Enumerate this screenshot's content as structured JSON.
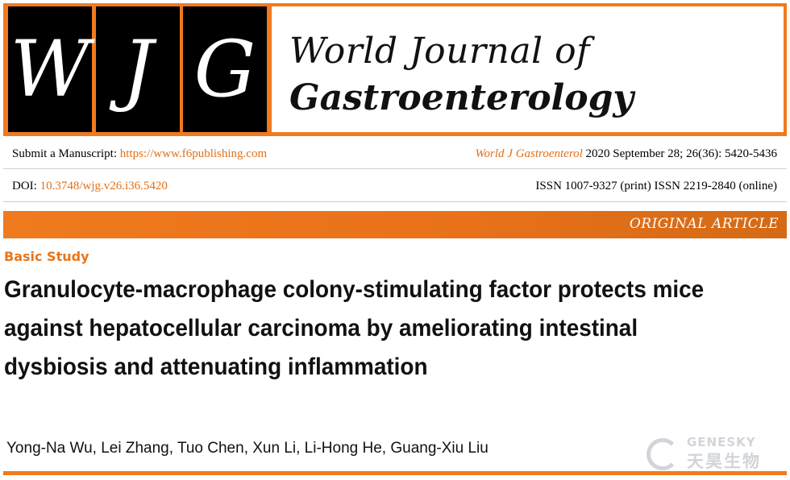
{
  "masthead": {
    "logo_letters": [
      "W",
      "J",
      "G"
    ],
    "journal_line1": "World Journal of",
    "journal_line2": "Gastroenterology",
    "accent_color": "#f07a1f"
  },
  "info": {
    "submit_label": "Submit a Manuscript: ",
    "submit_url": "https://www.f6publishing.com",
    "citation_journal": "World J Gastroenterol",
    "citation_rest": " 2020 September 28; 26(36): 5420-5436",
    "doi_label": "DOI: ",
    "doi_value": "10.3748/wjg.v26.i36.5420",
    "issn": "ISSN 1007-9327 (print) ISSN 2219-2840 (online)"
  },
  "article": {
    "type_label": "ORIGINAL ARTICLE",
    "section": "Basic Study",
    "title": "Granulocyte-macrophage colony-stimulating factor protects mice against hepatocellular carcinoma by ameliorating intestinal dysbiosis and attenuating inflammation",
    "authors": "Yong-Na Wu, Lei Zhang, Tuo Chen, Xun Li, Li-Hong He, Guang-Xiu Liu"
  },
  "watermark": {
    "icon": "genesky-logo-icon",
    "name_en": "GENESKY",
    "name_cn": "天昊生物"
  }
}
